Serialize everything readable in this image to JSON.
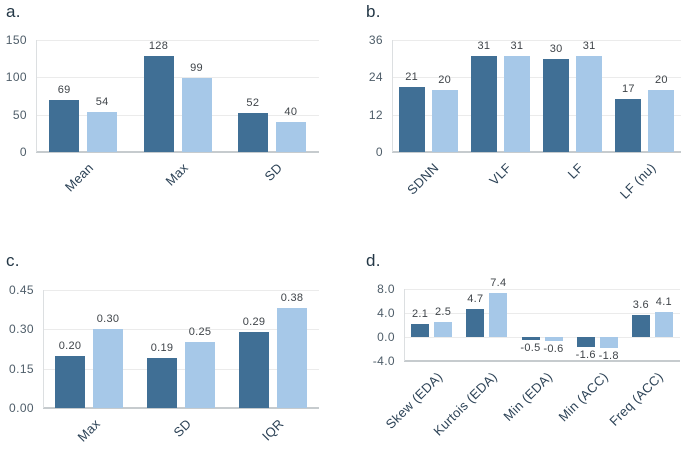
{
  "figure": {
    "description": "Four-panel grouped bar chart figure",
    "legend": "none"
  },
  "colors": {
    "series_dark": "#406f95",
    "series_light": "#a6c8e8",
    "gridline": "#ebebeb",
    "x_axis_line": "#c6cbce",
    "y_axis_line": "#dcdfe1",
    "tick_text": "#4e5d69",
    "category_text": "#2c4256",
    "value_text": "#3f4449",
    "panel_label_text": "#233746",
    "background": "#ffffff"
  },
  "chart_data": [
    {
      "type": "bar",
      "panel_label": "a.",
      "categories": [
        "Mean",
        "Max",
        "SD"
      ],
      "series": [
        {
          "name": "dark-blue-series",
          "color": "#406f95",
          "values": [
            69,
            128,
            52
          ],
          "labels": [
            "69",
            "128",
            "52"
          ]
        },
        {
          "name": "light-blue-series",
          "color": "#a6c8e8",
          "values": [
            54,
            99,
            40
          ],
          "labels": [
            "54",
            "99",
            "40"
          ]
        }
      ],
      "ylim": [
        0,
        150
      ],
      "ytick_values": [
        0,
        50,
        100,
        150
      ],
      "ytick_labels": [
        "0",
        "50",
        "100",
        "150"
      ],
      "grid": true,
      "legend_position": "none"
    },
    {
      "type": "bar",
      "panel_label": "b.",
      "categories": [
        "SDNN",
        "VLF",
        "LF",
        "LF (nu)"
      ],
      "series": [
        {
          "name": "dark-blue-series",
          "color": "#406f95",
          "values": [
            21,
            31,
            30,
            17
          ],
          "labels": [
            "21",
            "31",
            "30",
            "17"
          ]
        },
        {
          "name": "light-blue-series",
          "color": "#a6c8e8",
          "values": [
            20,
            31,
            31,
            20
          ],
          "labels": [
            "20",
            "31",
            "31",
            "20"
          ]
        }
      ],
      "ylim": [
        0,
        36
      ],
      "ytick_values": [
        0,
        12,
        24,
        36
      ],
      "ytick_labels": [
        "0",
        "12",
        "24",
        "36"
      ],
      "grid": true,
      "legend_position": "none"
    },
    {
      "type": "bar",
      "panel_label": "c.",
      "categories": [
        "Max",
        "SD",
        "IQR"
      ],
      "series": [
        {
          "name": "dark-blue-series",
          "color": "#406f95",
          "values": [
            0.2,
            0.19,
            0.29
          ],
          "labels": [
            "0.20",
            "0.19",
            "0.29"
          ]
        },
        {
          "name": "light-blue-series",
          "color": "#a6c8e8",
          "values": [
            0.3,
            0.25,
            0.38
          ],
          "labels": [
            "0.30",
            "0.25",
            "0.38"
          ]
        }
      ],
      "ylim": [
        0,
        0.45
      ],
      "ytick_values": [
        0,
        0.15,
        0.3,
        0.45
      ],
      "ytick_labels": [
        "0.00",
        "0.15",
        "0.30",
        "0.45"
      ],
      "grid": true,
      "legend_position": "none"
    },
    {
      "type": "bar",
      "panel_label": "d.",
      "categories": [
        "Skew (EDA)",
        "Kurtois (EDA)",
        "Min (EDA)",
        "Min (ACC)",
        "Freq (ACC)"
      ],
      "series": [
        {
          "name": "dark-blue-series",
          "color": "#406f95",
          "values": [
            2.1,
            4.7,
            -0.5,
            -1.6,
            3.6
          ],
          "labels": [
            "2.1",
            "4.7",
            "-0.5",
            "-1.6",
            "3.6"
          ]
        },
        {
          "name": "light-blue-series",
          "color": "#a6c8e8",
          "values": [
            2.5,
            7.4,
            -0.6,
            -1.8,
            4.1
          ],
          "labels": [
            "2.5",
            "7.4",
            "-0.6",
            "-1.8",
            "4.1"
          ]
        }
      ],
      "ylim": [
        -4,
        8
      ],
      "ytick_values": [
        -4,
        0,
        4,
        8
      ],
      "ytick_labels": [
        "-4.0",
        "0.0",
        "4.0",
        "8.0"
      ],
      "grid": true,
      "legend_position": "none"
    }
  ]
}
